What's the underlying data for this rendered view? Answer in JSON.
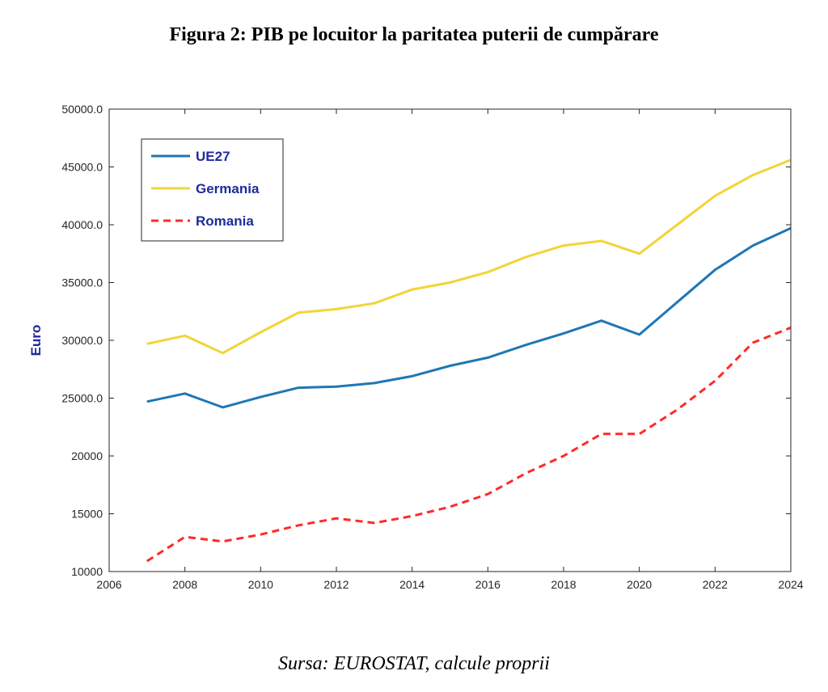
{
  "title": "Figura 2: PIB pe locuitor la paritatea puterii de cumpărare",
  "source": "Sursa: EUROSTAT, calcule proprii",
  "chart_data": {
    "type": "line",
    "ylabel": "Euro",
    "xlabel": "",
    "xlim": [
      2006,
      2024
    ],
    "ylim": [
      10000,
      50000
    ],
    "x_ticks": [
      "2006",
      "2008",
      "2010",
      "2012",
      "2014",
      "2016",
      "2018",
      "2020",
      "2022",
      "2024"
    ],
    "y_ticks": [
      "10000",
      "15000",
      "20000",
      "25000.0",
      "30000.0",
      "35000.0",
      "40000.0",
      "45000.0",
      "50000.0"
    ],
    "legend_position": "top-left",
    "x": [
      2007,
      2008,
      2009,
      2010,
      2011,
      2012,
      2013,
      2014,
      2015,
      2016,
      2017,
      2018,
      2019,
      2020,
      2021,
      2022,
      2023,
      2024
    ],
    "series": [
      {
        "name": "UE27",
        "color": "#1f77b4",
        "style": "solid",
        "values": [
          24700,
          25400,
          24200,
          25100,
          25900,
          26000,
          26300,
          26900,
          27800,
          28500,
          29600,
          30600,
          31700,
          30500,
          33300,
          36100,
          38200,
          39700
        ]
      },
      {
        "name": "Germania",
        "color": "#f2d438",
        "style": "solid",
        "values": [
          29700,
          30400,
          28900,
          30700,
          32400,
          32700,
          33200,
          34400,
          35000,
          35900,
          37200,
          38200,
          38600,
          37500,
          40000,
          42500,
          44300,
          45600
        ]
      },
      {
        "name": "Romania",
        "color": "#ff2a2a",
        "style": "dashed",
        "values": [
          10900,
          13000,
          12600,
          13200,
          14000,
          14600,
          14200,
          14800,
          15600,
          16700,
          18500,
          20000,
          21900,
          21900,
          24000,
          26500,
          29800,
          31100
        ]
      }
    ]
  }
}
